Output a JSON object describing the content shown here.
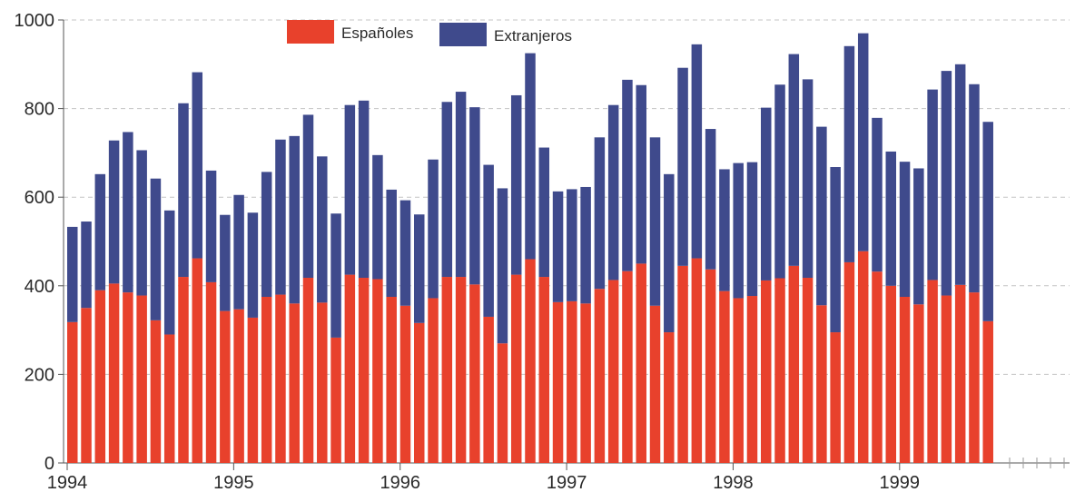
{
  "chart_data": {
    "type": "bar",
    "stacked": true,
    "title": "",
    "xlabel": "",
    "ylabel": "",
    "ylim": [
      0,
      1000
    ],
    "yticks": [
      0,
      200,
      400,
      600,
      800,
      1000
    ],
    "x_tick_labels": [
      "1994",
      "1995",
      "1996",
      "1997",
      "1998",
      "1999"
    ],
    "months_per_year": 12,
    "grid": "dashed horizontal",
    "legend_position": "top-center",
    "series": [
      {
        "name": "Españoles",
        "color": "#e8412c",
        "values": [
          318,
          350,
          390,
          405,
          385,
          378,
          322,
          290,
          420,
          462,
          408,
          343,
          347,
          328,
          375,
          380,
          360,
          418,
          362,
          283,
          425,
          418,
          415,
          375,
          355,
          316,
          372,
          420,
          420,
          403,
          330,
          270,
          425,
          460,
          420,
          363,
          365,
          360,
          393,
          413,
          433,
          450,
          355,
          295,
          445,
          462,
          437,
          388,
          372,
          377,
          412,
          417,
          445,
          418,
          356,
          295,
          453,
          478,
          432,
          400,
          375,
          358,
          413,
          378,
          402,
          385,
          320
        ]
      },
      {
        "name": "Extranjeros",
        "color": "#3f4a8c",
        "values": [
          215,
          195,
          262,
          323,
          362,
          328,
          320,
          280,
          392,
          420,
          252,
          217,
          258,
          237,
          282,
          350,
          378,
          368,
          330,
          280,
          383,
          400,
          280,
          242,
          238,
          245,
          313,
          395,
          418,
          400,
          343,
          350,
          405,
          465,
          292,
          250,
          253,
          263,
          342,
          395,
          432,
          403,
          380,
          357,
          447,
          483,
          317,
          275,
          305,
          302,
          390,
          437,
          478,
          448,
          403,
          373,
          488,
          492,
          347,
          303,
          305,
          307,
          430,
          507,
          498,
          470,
          450
        ]
      }
    ]
  }
}
